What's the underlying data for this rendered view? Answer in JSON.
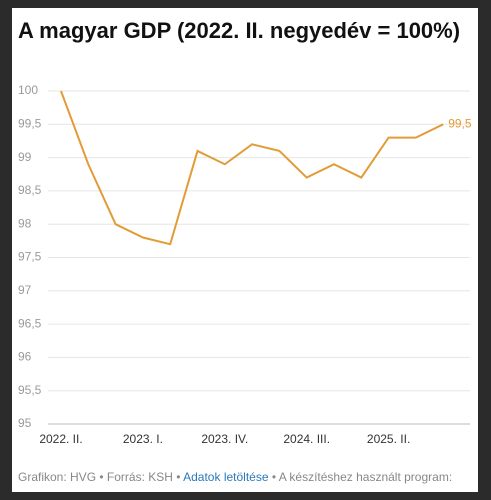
{
  "chart_data": {
    "type": "line",
    "title": "A magyar GDP (2022. II. negyedév = 100%)",
    "categories": [
      "2022. II.",
      null,
      null,
      "2023. I.",
      null,
      null,
      "2023. IV.",
      null,
      null,
      "2024. III.",
      null,
      null,
      "2025. II.",
      null,
      null
    ],
    "series": [
      {
        "name": "GDP",
        "color": "#e39b37",
        "values": [
          100,
          98.9,
          98.0,
          97.8,
          97.7,
          99.1,
          98.9,
          99.2,
          99.1,
          98.7,
          98.9,
          98.7,
          99.3,
          99.3,
          99.5
        ],
        "value_labels": [
          null,
          null,
          null,
          null,
          null,
          null,
          null,
          null,
          null,
          null,
          null,
          null,
          null,
          null,
          "99,5"
        ]
      }
    ],
    "ylim": [
      95,
      100
    ],
    "yticks": [
      95,
      {
        "value": 95.5,
        "label": "95,5"
      },
      96,
      {
        "value": 96.5,
        "label": "96,5"
      },
      97,
      {
        "value": 97.5,
        "label": "97,5"
      },
      98,
      {
        "value": 98.5,
        "label": "98,5"
      },
      99,
      {
        "value": 99.5,
        "label": "99,5"
      },
      100
    ],
    "grid": true
  },
  "footer": {
    "credit": "Grafikon: HVG • Forrás: KSH •",
    "link": "Adatok letöltése",
    "rest": "• A készítéshez használt program:"
  }
}
